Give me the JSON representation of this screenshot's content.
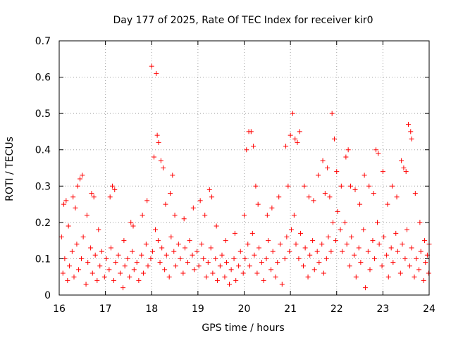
{
  "chart_data": {
    "type": "scatter",
    "title": "Day 177 of 2025, Rate Of TEC Index for receiver kir0",
    "xlabel": "GPS time / hours",
    "ylabel": "ROTI / TECUs",
    "xlim": [
      16,
      24
    ],
    "ylim": [
      0,
      0.7
    ],
    "x_ticks": [
      16,
      17,
      18,
      19,
      20,
      21,
      22,
      23,
      24
    ],
    "x_tick_labels": [
      "16",
      "17",
      "18",
      "19",
      "20",
      "21",
      "22",
      "23",
      "24"
    ],
    "y_ticks": [
      0,
      0.1,
      0.2,
      0.3,
      0.4,
      0.5,
      0.6,
      0.7
    ],
    "y_tick_labels": [
      "0",
      "0.1",
      "0.2",
      "0.3",
      "0.4",
      "0.5",
      "0.6",
      "0.7"
    ],
    "grid": true,
    "marker": "plus",
    "color": "#ff0000",
    "series": [
      {
        "points": [
          [
            16.05,
            0.16
          ],
          [
            16.1,
            0.25
          ],
          [
            16.15,
            0.26
          ],
          [
            16.2,
            0.19
          ],
          [
            16.3,
            0.27
          ],
          [
            16.35,
            0.24
          ],
          [
            16.4,
            0.3
          ],
          [
            16.45,
            0.32
          ],
          [
            16.5,
            0.33
          ],
          [
            16.6,
            0.22
          ],
          [
            16.7,
            0.28
          ],
          [
            16.75,
            0.27
          ],
          [
            16.85,
            0.18
          ],
          [
            17.1,
            0.27
          ],
          [
            17.15,
            0.3
          ],
          [
            17.2,
            0.29
          ],
          [
            17.4,
            0.15
          ],
          [
            17.55,
            0.2
          ],
          [
            17.6,
            0.19
          ],
          [
            17.8,
            0.22
          ],
          [
            17.9,
            0.26
          ],
          [
            18.0,
            0.63
          ],
          [
            18.1,
            0.61
          ],
          [
            18.05,
            0.38
          ],
          [
            18.12,
            0.44
          ],
          [
            18.15,
            0.42
          ],
          [
            18.2,
            0.37
          ],
          [
            18.25,
            0.35
          ],
          [
            18.3,
            0.25
          ],
          [
            18.4,
            0.28
          ],
          [
            18.45,
            0.33
          ],
          [
            18.5,
            0.22
          ],
          [
            18.7,
            0.21
          ],
          [
            18.9,
            0.24
          ],
          [
            19.05,
            0.26
          ],
          [
            19.15,
            0.22
          ],
          [
            19.25,
            0.29
          ],
          [
            19.3,
            0.27
          ],
          [
            19.4,
            0.19
          ],
          [
            19.6,
            0.15
          ],
          [
            19.8,
            0.17
          ],
          [
            20.0,
            0.22
          ],
          [
            20.05,
            0.4
          ],
          [
            20.1,
            0.45
          ],
          [
            20.15,
            0.45
          ],
          [
            20.2,
            0.41
          ],
          [
            20.25,
            0.3
          ],
          [
            20.3,
            0.25
          ],
          [
            20.5,
            0.22
          ],
          [
            20.6,
            0.24
          ],
          [
            20.75,
            0.27
          ],
          [
            20.9,
            0.41
          ],
          [
            20.95,
            0.3
          ],
          [
            21.0,
            0.44
          ],
          [
            21.05,
            0.5
          ],
          [
            21.1,
            0.43
          ],
          [
            21.15,
            0.42
          ],
          [
            21.2,
            0.45
          ],
          [
            21.3,
            0.3
          ],
          [
            21.4,
            0.27
          ],
          [
            21.5,
            0.26
          ],
          [
            21.6,
            0.33
          ],
          [
            21.7,
            0.37
          ],
          [
            21.75,
            0.28
          ],
          [
            21.8,
            0.35
          ],
          [
            21.85,
            0.27
          ],
          [
            21.9,
            0.5
          ],
          [
            21.95,
            0.43
          ],
          [
            22.0,
            0.34
          ],
          [
            22.1,
            0.3
          ],
          [
            22.2,
            0.38
          ],
          [
            22.25,
            0.4
          ],
          [
            22.3,
            0.3
          ],
          [
            22.4,
            0.29
          ],
          [
            22.5,
            0.25
          ],
          [
            22.6,
            0.33
          ],
          [
            22.7,
            0.3
          ],
          [
            22.8,
            0.28
          ],
          [
            22.85,
            0.4
          ],
          [
            22.9,
            0.39
          ],
          [
            23.0,
            0.34
          ],
          [
            23.1,
            0.25
          ],
          [
            23.2,
            0.3
          ],
          [
            23.3,
            0.27
          ],
          [
            23.4,
            0.37
          ],
          [
            23.45,
            0.35
          ],
          [
            23.5,
            0.34
          ],
          [
            23.55,
            0.47
          ],
          [
            23.6,
            0.45
          ],
          [
            23.62,
            0.43
          ],
          [
            23.7,
            0.28
          ],
          [
            23.8,
            0.2
          ],
          [
            23.9,
            0.15
          ],
          [
            24.0,
            0.14
          ]
        ],
        "bulk_points": [
          [
            16.08,
            0.06
          ],
          [
            16.12,
            0.1
          ],
          [
            16.18,
            0.04
          ],
          [
            16.22,
            0.08
          ],
          [
            16.28,
            0.12
          ],
          [
            16.32,
            0.05
          ],
          [
            16.38,
            0.14
          ],
          [
            16.42,
            0.07
          ],
          [
            16.48,
            0.1
          ],
          [
            16.52,
            0.16
          ],
          [
            16.58,
            0.03
          ],
          [
            16.62,
            0.09
          ],
          [
            16.68,
            0.13
          ],
          [
            16.72,
            0.06
          ],
          [
            16.78,
            0.11
          ],
          [
            16.82,
            0.04
          ],
          [
            16.88,
            0.08
          ],
          [
            16.92,
            0.12
          ],
          [
            16.98,
            0.05
          ],
          [
            17.02,
            0.1
          ],
          [
            17.08,
            0.07
          ],
          [
            17.12,
            0.13
          ],
          [
            17.18,
            0.04
          ],
          [
            17.22,
            0.09
          ],
          [
            17.28,
            0.11
          ],
          [
            17.32,
            0.06
          ],
          [
            17.38,
            0.02
          ],
          [
            17.42,
            0.08
          ],
          [
            17.48,
            0.1
          ],
          [
            17.52,
            0.05
          ],
          [
            17.58,
            0.12
          ],
          [
            17.62,
            0.07
          ],
          [
            17.68,
            0.09
          ],
          [
            17.72,
            0.04
          ],
          [
            17.78,
            0.11
          ],
          [
            17.82,
            0.06
          ],
          [
            17.88,
            0.14
          ],
          [
            17.92,
            0.08
          ],
          [
            17.98,
            0.1
          ],
          [
            18.02,
            0.12
          ],
          [
            18.08,
            0.18
          ],
          [
            18.14,
            0.15
          ],
          [
            18.18,
            0.09
          ],
          [
            18.22,
            0.13
          ],
          [
            18.28,
            0.07
          ],
          [
            18.32,
            0.11
          ],
          [
            18.38,
            0.05
          ],
          [
            18.42,
            0.16
          ],
          [
            18.48,
            0.12
          ],
          [
            18.52,
            0.08
          ],
          [
            18.58,
            0.14
          ],
          [
            18.62,
            0.1
          ],
          [
            18.68,
            0.06
          ],
          [
            18.72,
            0.13
          ],
          [
            18.78,
            0.09
          ],
          [
            18.82,
            0.15
          ],
          [
            18.88,
            0.11
          ],
          [
            18.92,
            0.07
          ],
          [
            18.98,
            0.12
          ],
          [
            19.02,
            0.08
          ],
          [
            19.08,
            0.14
          ],
          [
            19.12,
            0.1
          ],
          [
            19.18,
            0.05
          ],
          [
            19.22,
            0.09
          ],
          [
            19.28,
            0.13
          ],
          [
            19.32,
            0.06
          ],
          [
            19.38,
            0.1
          ],
          [
            19.42,
            0.04
          ],
          [
            19.48,
            0.08
          ],
          [
            19.52,
            0.11
          ],
          [
            19.58,
            0.05
          ],
          [
            19.62,
            0.09
          ],
          [
            19.68,
            0.03
          ],
          [
            19.72,
            0.07
          ],
          [
            19.78,
            0.1
          ],
          [
            19.82,
            0.04
          ],
          [
            19.88,
            0.08
          ],
          [
            19.92,
            0.12
          ],
          [
            19.98,
            0.06
          ],
          [
            20.02,
            0.1
          ],
          [
            20.08,
            0.14
          ],
          [
            20.12,
            0.08
          ],
          [
            20.18,
            0.17
          ],
          [
            20.22,
            0.11
          ],
          [
            20.28,
            0.06
          ],
          [
            20.32,
            0.13
          ],
          [
            20.38,
            0.09
          ],
          [
            20.42,
            0.04
          ],
          [
            20.48,
            0.1
          ],
          [
            20.52,
            0.15
          ],
          [
            20.58,
            0.07
          ],
          [
            20.62,
            0.12
          ],
          [
            20.68,
            0.05
          ],
          [
            20.72,
            0.09
          ],
          [
            20.78,
            0.14
          ],
          [
            20.82,
            0.03
          ],
          [
            20.88,
            0.1
          ],
          [
            20.92,
            0.16
          ],
          [
            20.98,
            0.12
          ],
          [
            21.02,
            0.18
          ],
          [
            21.08,
            0.22
          ],
          [
            21.12,
            0.14
          ],
          [
            21.18,
            0.1
          ],
          [
            21.22,
            0.17
          ],
          [
            21.28,
            0.08
          ],
          [
            21.32,
            0.13
          ],
          [
            21.38,
            0.05
          ],
          [
            21.42,
            0.11
          ],
          [
            21.48,
            0.15
          ],
          [
            21.52,
            0.07
          ],
          [
            21.58,
            0.12
          ],
          [
            21.62,
            0.09
          ],
          [
            21.68,
            0.14
          ],
          [
            21.72,
            0.06
          ],
          [
            21.78,
            0.1
          ],
          [
            21.82,
            0.16
          ],
          [
            21.88,
            0.12
          ],
          [
            21.92,
            0.2
          ],
          [
            21.98,
            0.15
          ],
          [
            22.02,
            0.23
          ],
          [
            22.08,
            0.18
          ],
          [
            22.12,
            0.12
          ],
          [
            22.18,
            0.2
          ],
          [
            22.22,
            0.14
          ],
          [
            22.28,
            0.08
          ],
          [
            22.32,
            0.16
          ],
          [
            22.38,
            0.11
          ],
          [
            22.42,
            0.05
          ],
          [
            22.48,
            0.13
          ],
          [
            22.52,
            0.09
          ],
          [
            22.58,
            0.18
          ],
          [
            22.62,
            0.02
          ],
          [
            22.68,
            0.12
          ],
          [
            22.72,
            0.07
          ],
          [
            22.78,
            0.15
          ],
          [
            22.82,
            0.1
          ],
          [
            22.88,
            0.2
          ],
          [
            22.92,
            0.14
          ],
          [
            22.98,
            0.08
          ],
          [
            23.02,
            0.16
          ],
          [
            23.08,
            0.11
          ],
          [
            23.12,
            0.05
          ],
          [
            23.18,
            0.13
          ],
          [
            23.22,
            0.09
          ],
          [
            23.28,
            0.17
          ],
          [
            23.32,
            0.12
          ],
          [
            23.38,
            0.06
          ],
          [
            23.42,
            0.14
          ],
          [
            23.48,
            0.1
          ],
          [
            23.52,
            0.18
          ],
          [
            23.58,
            0.08
          ],
          [
            23.62,
            0.13
          ],
          [
            23.68,
            0.05
          ],
          [
            23.72,
            0.1
          ],
          [
            23.78,
            0.07
          ],
          [
            23.82,
            0.12
          ],
          [
            23.88,
            0.04
          ],
          [
            23.92,
            0.09
          ],
          [
            23.96,
            0.11
          ],
          [
            23.99,
            0.06
          ]
        ]
      }
    ]
  }
}
